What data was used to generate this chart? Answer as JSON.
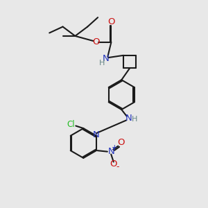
{
  "bg_color": "#e8e8e8",
  "bond_color": "#1a1a1a",
  "N_color": "#2233bb",
  "O_color": "#cc1111",
  "Cl_color": "#22bb22",
  "H_color": "#668888",
  "lw": 1.5,
  "figsize": [
    3.0,
    3.0
  ],
  "dpi": 100,
  "xlim": [
    0,
    10
  ],
  "ylim": [
    0,
    10
  ]
}
